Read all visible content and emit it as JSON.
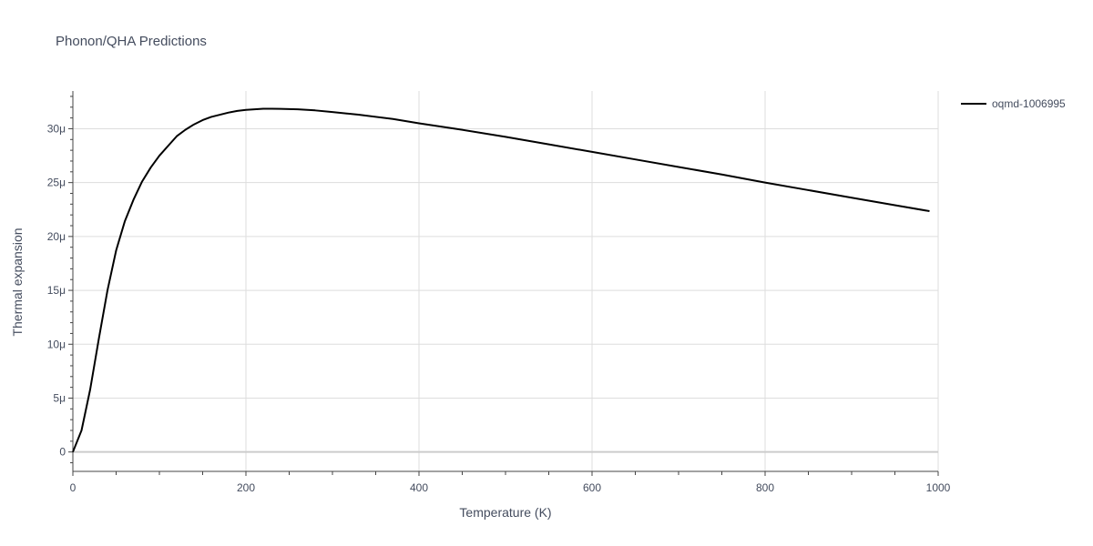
{
  "chart_data": {
    "type": "line",
    "title": "Phonon/QHA Predictions",
    "xlabel": "Temperature (K)",
    "ylabel": "Thermal expansion",
    "xlim": [
      0,
      1000
    ],
    "ylim": [
      -1.8,
      33.5
    ],
    "x_ticks": [
      0,
      200,
      400,
      600,
      800,
      1000
    ],
    "x_tick_labels": [
      "0",
      "200",
      "400",
      "600",
      "800",
      "1000"
    ],
    "y_ticks": [
      0,
      5,
      10,
      15,
      20,
      25,
      30
    ],
    "y_tick_labels": [
      "0",
      "5μ",
      "10μ",
      "15μ",
      "20μ",
      "25μ",
      "30μ"
    ],
    "y_unit_scale": 1e-06,
    "grid": true,
    "legend_position": "top-right",
    "series": [
      {
        "name": "oqmd-1006995",
        "color": "#000000",
        "x": [
          0,
          10,
          20,
          30,
          40,
          50,
          60,
          70,
          80,
          90,
          100,
          110,
          120,
          130,
          140,
          150,
          160,
          170,
          180,
          190,
          200,
          210,
          220,
          230,
          240,
          260,
          280,
          300,
          330,
          370,
          400,
          450,
          500,
          550,
          600,
          650,
          700,
          750,
          800,
          850,
          900,
          950,
          990
        ],
        "y": [
          0.0,
          2.0,
          5.8,
          10.5,
          15.0,
          18.7,
          21.4,
          23.4,
          25.1,
          26.4,
          27.5,
          28.4,
          29.3,
          29.9,
          30.4,
          30.8,
          31.1,
          31.3,
          31.5,
          31.65,
          31.75,
          31.8,
          31.85,
          31.85,
          31.84,
          31.8,
          31.7,
          31.55,
          31.3,
          30.9,
          30.5,
          29.9,
          29.25,
          28.55,
          27.85,
          27.15,
          26.45,
          25.75,
          25.0,
          24.3,
          23.6,
          22.9,
          22.35
        ]
      }
    ]
  }
}
